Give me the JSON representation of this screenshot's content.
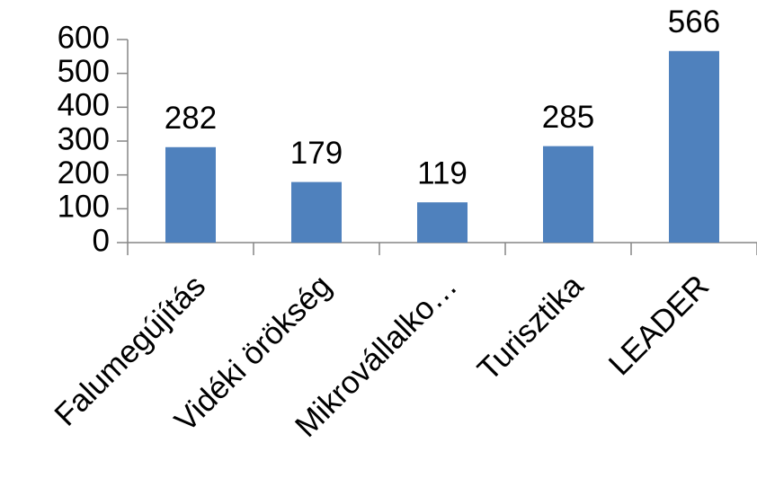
{
  "chart_data": {
    "type": "bar",
    "categories": [
      "Falumegújítás",
      "Vidéki örökség",
      "Mikrovállalko…",
      "Turisztika",
      "LEADER"
    ],
    "values": [
      282,
      179,
      119,
      285,
      566
    ],
    "color": "#4f81bd",
    "ylim": [
      0,
      600
    ],
    "yticks": [
      0,
      100,
      200,
      300,
      400,
      500,
      600
    ],
    "grid": false
  }
}
